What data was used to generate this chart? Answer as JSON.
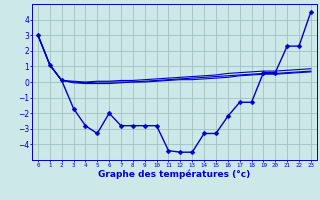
{
  "xlabel": "Graphe des températures (°c)",
  "background_color": "#cce8e8",
  "grid_color": "#99bbbb",
  "line_color": "#0000cc",
  "x_ticks": [
    0,
    1,
    2,
    3,
    4,
    5,
    6,
    7,
    8,
    9,
    10,
    11,
    12,
    13,
    14,
    15,
    16,
    17,
    18,
    19,
    20,
    21,
    22,
    23
  ],
  "y_ticks": [
    -4,
    -3,
    -2,
    -1,
    0,
    1,
    2,
    3,
    4
  ],
  "xlim": [
    -0.5,
    23.5
  ],
  "ylim": [
    -5.0,
    5.0
  ],
  "main_series": {
    "x": [
      0,
      1,
      2,
      3,
      4,
      5,
      6,
      7,
      8,
      9,
      10,
      11,
      12,
      13,
      14,
      15,
      16,
      17,
      18,
      19,
      20,
      21,
      22,
      23
    ],
    "y": [
      3.0,
      1.1,
      0.1,
      -1.7,
      -2.8,
      -3.3,
      -2.0,
      -2.8,
      -2.8,
      -2.8,
      -2.8,
      -4.4,
      -4.5,
      -4.5,
      -3.3,
      -3.3,
      -2.2,
      -1.3,
      -1.3,
      0.6,
      0.6,
      2.3,
      2.3,
      4.5
    ]
  },
  "ref_lines": [
    {
      "x": [
        0,
        1,
        2,
        3,
        4,
        5,
        6,
        7,
        8,
        9,
        10,
        11,
        12,
        13,
        14,
        15,
        16,
        17,
        18,
        19,
        20,
        21,
        22,
        23
      ],
      "y": [
        3.0,
        1.1,
        0.1,
        0.05,
        0.0,
        0.05,
        0.05,
        0.1,
        0.1,
        0.15,
        0.2,
        0.25,
        0.3,
        0.35,
        0.4,
        0.45,
        0.55,
        0.6,
        0.65,
        0.7,
        0.7,
        0.75,
        0.8,
        0.85
      ]
    },
    {
      "x": [
        0,
        1,
        2,
        3,
        4,
        5,
        6,
        7,
        8,
        9,
        10,
        11,
        12,
        13,
        14,
        15,
        16,
        17,
        18,
        19,
        20,
        21,
        22,
        23
      ],
      "y": [
        3.0,
        1.1,
        0.1,
        0.0,
        -0.05,
        0.0,
        0.0,
        0.0,
        0.0,
        0.05,
        0.1,
        0.15,
        0.2,
        0.25,
        0.3,
        0.35,
        0.4,
        0.45,
        0.5,
        0.55,
        0.55,
        0.6,
        0.65,
        0.7
      ]
    },
    {
      "x": [
        0,
        1,
        2,
        3,
        4,
        5,
        6,
        7,
        8,
        9,
        10,
        11,
        12,
        13,
        14,
        15,
        16,
        17,
        18,
        19,
        20,
        21,
        22,
        23
      ],
      "y": [
        3.0,
        1.1,
        0.1,
        -0.05,
        -0.1,
        -0.1,
        -0.1,
        -0.05,
        0.0,
        0.0,
        0.05,
        0.1,
        0.15,
        0.15,
        0.2,
        0.25,
        0.3,
        0.4,
        0.45,
        0.5,
        0.5,
        0.55,
        0.6,
        0.65
      ]
    }
  ]
}
